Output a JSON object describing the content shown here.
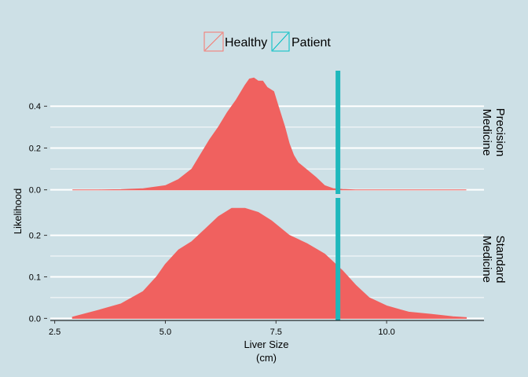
{
  "chart_data": {
    "type": "area",
    "xlabel": [
      "Liver Size",
      "(cm)"
    ],
    "ylabel": "Likelihood",
    "xlim": [
      2.4,
      12.2
    ],
    "xticks": [
      "2.5",
      "5.0",
      "7.5",
      "10.0"
    ],
    "xtick_values": [
      2.5,
      5.0,
      7.5,
      10.0
    ],
    "grid": true,
    "legend": {
      "position": "top-center",
      "entries": [
        {
          "label": "Healthy",
          "color": "#f8766d"
        },
        {
          "label": "Patient",
          "color": "#00bfc4"
        }
      ]
    },
    "patient_value": 8.9,
    "panels": [
      {
        "strip_label": [
          "Precision",
          "Medicine"
        ],
        "ylim": [
          -0.02,
          0.57
        ],
        "yticks": [
          "0.0",
          "0.2",
          "0.4"
        ],
        "ytick_values": [
          0.0,
          0.2,
          0.4
        ],
        "series": [
          {
            "name": "Healthy",
            "color": "#f0615f",
            "x": [
              2.9,
              3.5,
              4.0,
              4.5,
              5.0,
              5.3,
              5.6,
              5.8,
              6.0,
              6.2,
              6.4,
              6.6,
              6.8,
              6.9,
              7.0,
              7.1,
              7.2,
              7.3,
              7.45,
              7.55,
              7.7,
              7.8,
              7.9,
              8.0,
              8.2,
              8.4,
              8.6,
              8.8,
              9.0,
              9.3,
              10.0,
              11.0,
              11.8
            ],
            "y": [
              0.0,
              0.0,
              0.001,
              0.005,
              0.02,
              0.05,
              0.1,
              0.17,
              0.24,
              0.3,
              0.37,
              0.43,
              0.5,
              0.53,
              0.535,
              0.52,
              0.52,
              0.49,
              0.47,
              0.4,
              0.3,
              0.22,
              0.165,
              0.13,
              0.095,
              0.06,
              0.02,
              0.005,
              0.002,
              0.0,
              0.0,
              0.0,
              0.0
            ]
          }
        ]
      },
      {
        "strip_label": [
          "Standard",
          "Medicine"
        ],
        "ylim": [
          -0.005,
          0.29
        ],
        "yticks": [
          "0.0",
          "0.1",
          "0.2"
        ],
        "ytick_values": [
          0.0,
          0.1,
          0.2
        ],
        "series": [
          {
            "name": "Healthy",
            "color": "#f0615f",
            "x": [
              2.9,
              3.5,
              4.0,
              4.5,
              4.8,
              5.0,
              5.3,
              5.6,
              5.9,
              6.2,
              6.5,
              6.8,
              7.1,
              7.4,
              7.8,
              8.2,
              8.6,
              9.0,
              9.3,
              9.6,
              10.0,
              10.5,
              11.0,
              11.5,
              11.8
            ],
            "y": [
              0.003,
              0.02,
              0.035,
              0.065,
              0.1,
              0.13,
              0.165,
              0.185,
              0.215,
              0.245,
              0.265,
              0.265,
              0.255,
              0.235,
              0.2,
              0.18,
              0.155,
              0.115,
              0.08,
              0.05,
              0.03,
              0.015,
              0.01,
              0.004,
              0.002
            ]
          }
        ]
      }
    ]
  }
}
